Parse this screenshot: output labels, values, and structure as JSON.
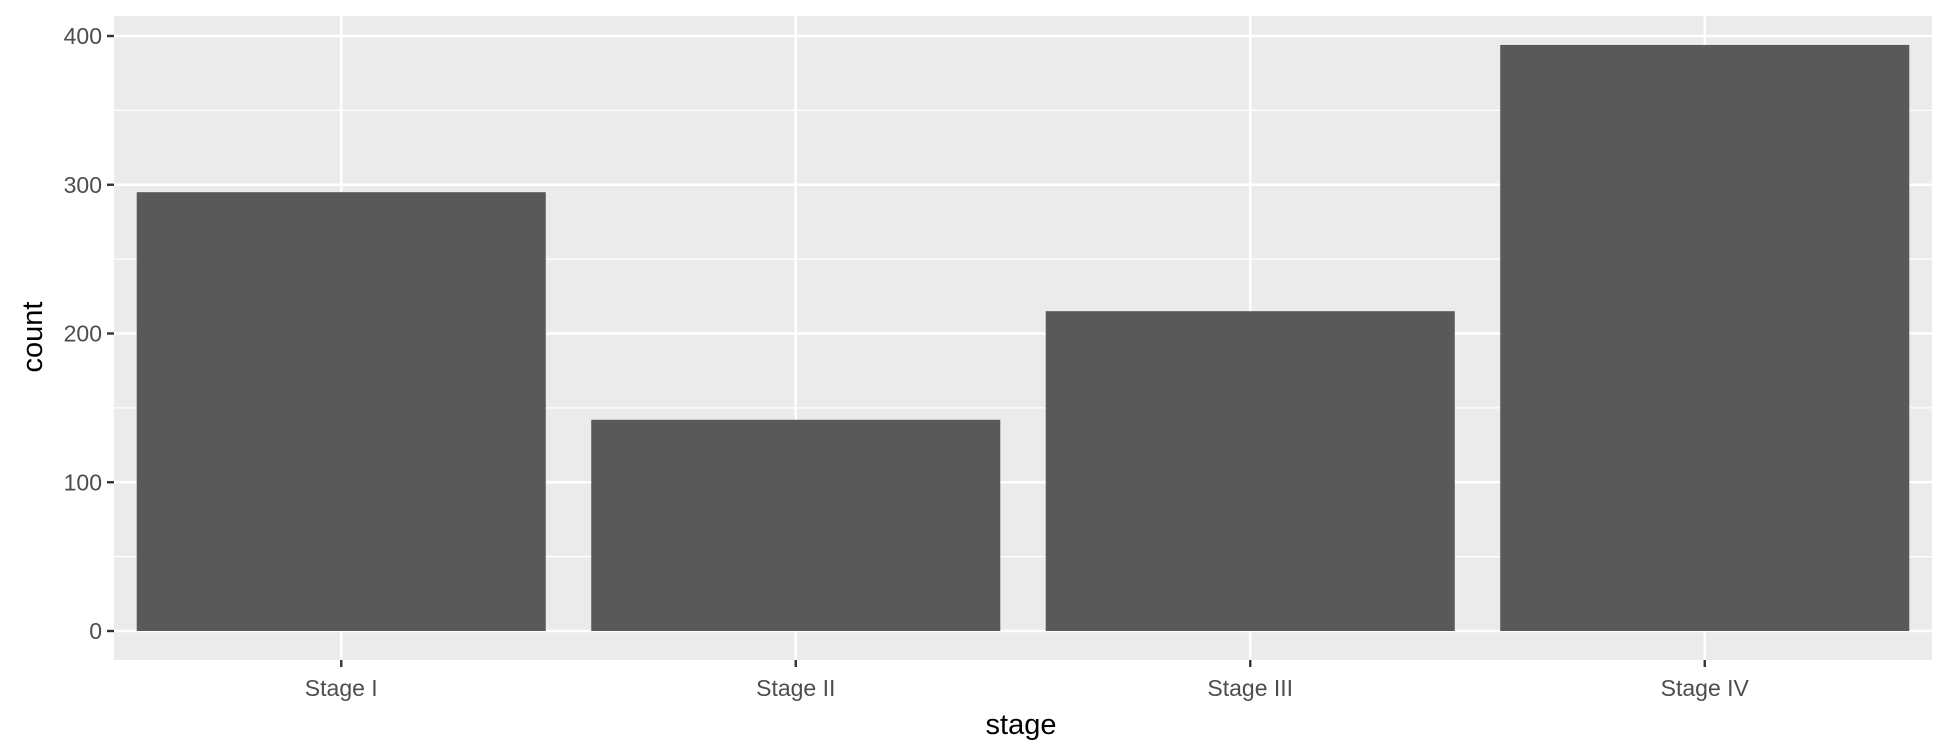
{
  "chart_data": {
    "type": "bar",
    "title": "",
    "xlabel": "stage",
    "ylabel": "count",
    "categories": [
      "Stage I",
      "Stage II",
      "Stage III",
      "Stage IV"
    ],
    "values": [
      295,
      142,
      215,
      394
    ],
    "ylim": [
      0,
      414
    ],
    "yticks": [
      0,
      100,
      200,
      300,
      400
    ],
    "grid": true,
    "legend": "none",
    "colors": {
      "bar": "#595959",
      "panel": "#ebebeb",
      "grid": "#ffffff",
      "tick": "#333333",
      "tick_label": "#4d4d4d"
    }
  }
}
